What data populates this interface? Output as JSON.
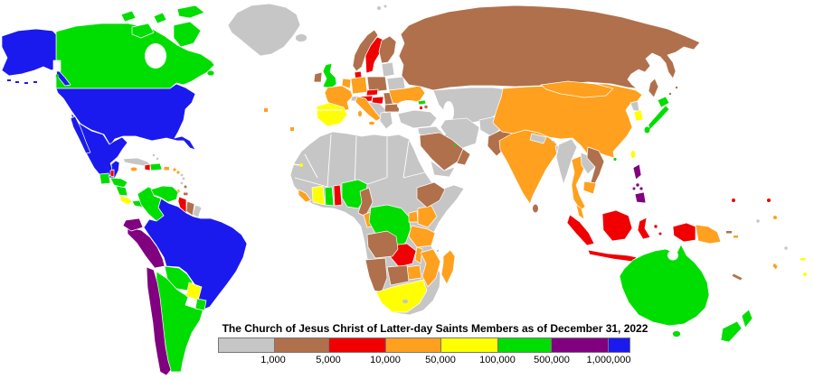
{
  "legend": {
    "title": "The Church of Jesus Christ of Latter-day Saints Members as of December 31, 2022",
    "tick_labels": [
      "1,000",
      "5,000",
      "10,000",
      "50,000",
      "100,000",
      "500,000",
      "1,000,000"
    ],
    "segments": [
      "gray",
      "brown",
      "red",
      "orange",
      "yellow",
      "green",
      "purple",
      "blue"
    ]
  },
  "map": {
    "palette": {
      "gray": "#c6c6c6",
      "brown": "#b0704c",
      "red": "#f00000",
      "orange": "#ffa01e",
      "yellow": "#ffff00",
      "green": "#00dd00",
      "purple": "#800080",
      "blue": "#1a1aef"
    },
    "region_colors": {
      "greenland": "gray",
      "cuba": "gray",
      "bahamas": "gray",
      "lesser-antilles-gray": "gray",
      "french-guiana": "gray",
      "iceland": "gray",
      "switzerland": "gray",
      "baltic-states": "gray",
      "belarus": "gray",
      "balkans": "gray",
      "greece": "gray",
      "svalbard": "gray",
      "central-asia": "gray",
      "turkey": "gray",
      "levant-iraq": "gray",
      "iran": "gray",
      "afghanistan": "gray",
      "yemen": "gray",
      "kuwait": "gray",
      "africa": "gray",
      "lesotho": "gray",
      "comoros": "gray",
      "nepal": "gray",
      "bhutan": "gray",
      "bangladesh": "gray",
      "myanmar": "gray",
      "laos": "gray",
      "north-korea": "gray",
      "pacific-gray": "gray",
      "ireland": "brown",
      "norway": "brown",
      "finland": "brown",
      "poland": "brown",
      "romania": "brown",
      "bulgaria": "brown",
      "russia": "brown",
      "suriname": "brown",
      "lesser-antilles-brown": "brown",
      "trinidad": "brown",
      "saudi-arabia": "brown",
      "oman": "brown",
      "pakistan": "brown",
      "azerbaijan": "brown",
      "sri-lanka": "brown",
      "vietnam": "brown",
      "cameroon": "brown",
      "ethiopia": "brown",
      "angola": "brown",
      "namibia": "brown",
      "botswana": "brown",
      "new-caledonia": "brown",
      "solomon-islands-brown": "brown",
      "sweden": "red",
      "denmark": "red",
      "czechia": "red",
      "austria": "red",
      "hungary": "red",
      "belize": "red",
      "haiti": "red",
      "guyana": "red",
      "togo-benin": "red",
      "zambia": "red",
      "armenia": "red",
      "indonesia": "red",
      "micronesia-red": "red",
      "jamaica": "orange",
      "puerto-rico": "orange",
      "lesser-antilles-orange": "orange",
      "france": "orange",
      "benelux": "orange",
      "germany": "orange",
      "italy": "orange",
      "ukraine": "orange",
      "china": "orange",
      "mongolia": "orange",
      "india": "orange",
      "thailand": "orange",
      "cambodia": "orange",
      "malaysia": "orange",
      "congo": "orange",
      "sierra-leone-liberia": "orange",
      "kenya": "orange",
      "uganda": "orange",
      "tanzania": "orange",
      "malawi": "orange",
      "mozambique": "orange",
      "zimbabwe": "orange",
      "madagascar": "orange",
      "papua-new-guinea": "orange",
      "solomon-islands-orange": "orange",
      "vanuatu": "orange",
      "azores-callout": "orange",
      "pacific-orange": "orange",
      "iberia": "yellow",
      "costa-rica": "yellow",
      "ivory-coast": "yellow",
      "south-africa": "yellow",
      "paraguay": "yellow",
      "south-korea": "yellow",
      "taiwan": "yellow",
      "fiji": "yellow",
      "canary-callout": "yellow",
      "pacific-yellow": "yellow",
      "canada": "green",
      "arctic-islands": "green",
      "uk": "green",
      "dominican-republic": "green",
      "guatemala": "green",
      "honduras": "green",
      "nicaragua": "green",
      "panama": "green",
      "colombia": "green",
      "venezuela": "green",
      "bolivia": "green",
      "argentina": "green",
      "uruguay": "green",
      "nigeria": "green",
      "ghana": "green",
      "drc": "green",
      "japan": "green",
      "hong-kong": "green",
      "qatar": "green",
      "georgia": "green",
      "australia": "green",
      "tasmania": "green",
      "new-zealand": "green",
      "vancouver-island": "green",
      "ecuador": "purple",
      "peru": "purple",
      "chile": "purple",
      "philippines": "purple",
      "alaska": "blue",
      "usa": "blue",
      "mexico": "blue",
      "brazil": "blue",
      "aleutian-islands": "blue"
    }
  }
}
